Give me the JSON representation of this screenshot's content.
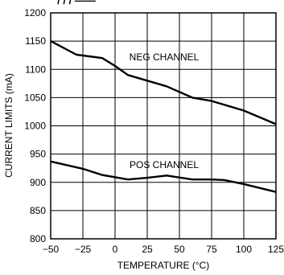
{
  "chart_data": {
    "type": "line",
    "title_fragment": "/ /  / ——",
    "xlabel": "TEMPERATURE (°C)",
    "ylabel": "CURRENT LIMITS (mA)",
    "xlim": [
      -50,
      125
    ],
    "ylim": [
      800,
      1200
    ],
    "xticks": [
      -50,
      -25,
      0,
      25,
      50,
      75,
      100,
      125
    ],
    "xtick_labels": [
      "−50",
      "−25",
      "0",
      "25",
      "50",
      "75",
      "100",
      "125"
    ],
    "yticks": [
      800,
      850,
      900,
      950,
      1000,
      1050,
      1100,
      1150,
      1200
    ],
    "ytick_labels": [
      "800",
      "850",
      "900",
      "950",
      "1000",
      "1050",
      "1100",
      "1150",
      "1200"
    ],
    "grid": true,
    "legend": "none",
    "series": [
      {
        "name": "NEG CHANNEL",
        "color": "#000000",
        "x": [
          -50,
          -30,
          -10,
          0,
          10,
          25,
          40,
          60,
          75,
          100,
          125
        ],
        "y": [
          1150,
          1126,
          1120,
          1106,
          1090,
          1080,
          1070,
          1050,
          1044,
          1027,
          1003
        ]
      },
      {
        "name": "POS CHANNEL",
        "color": "#000000",
        "x": [
          -50,
          -25,
          -10,
          10,
          25,
          40,
          60,
          75,
          85,
          100,
          125
        ],
        "y": [
          937,
          924,
          913,
          905,
          908,
          912,
          905,
          905,
          904,
          897,
          883
        ]
      }
    ]
  }
}
